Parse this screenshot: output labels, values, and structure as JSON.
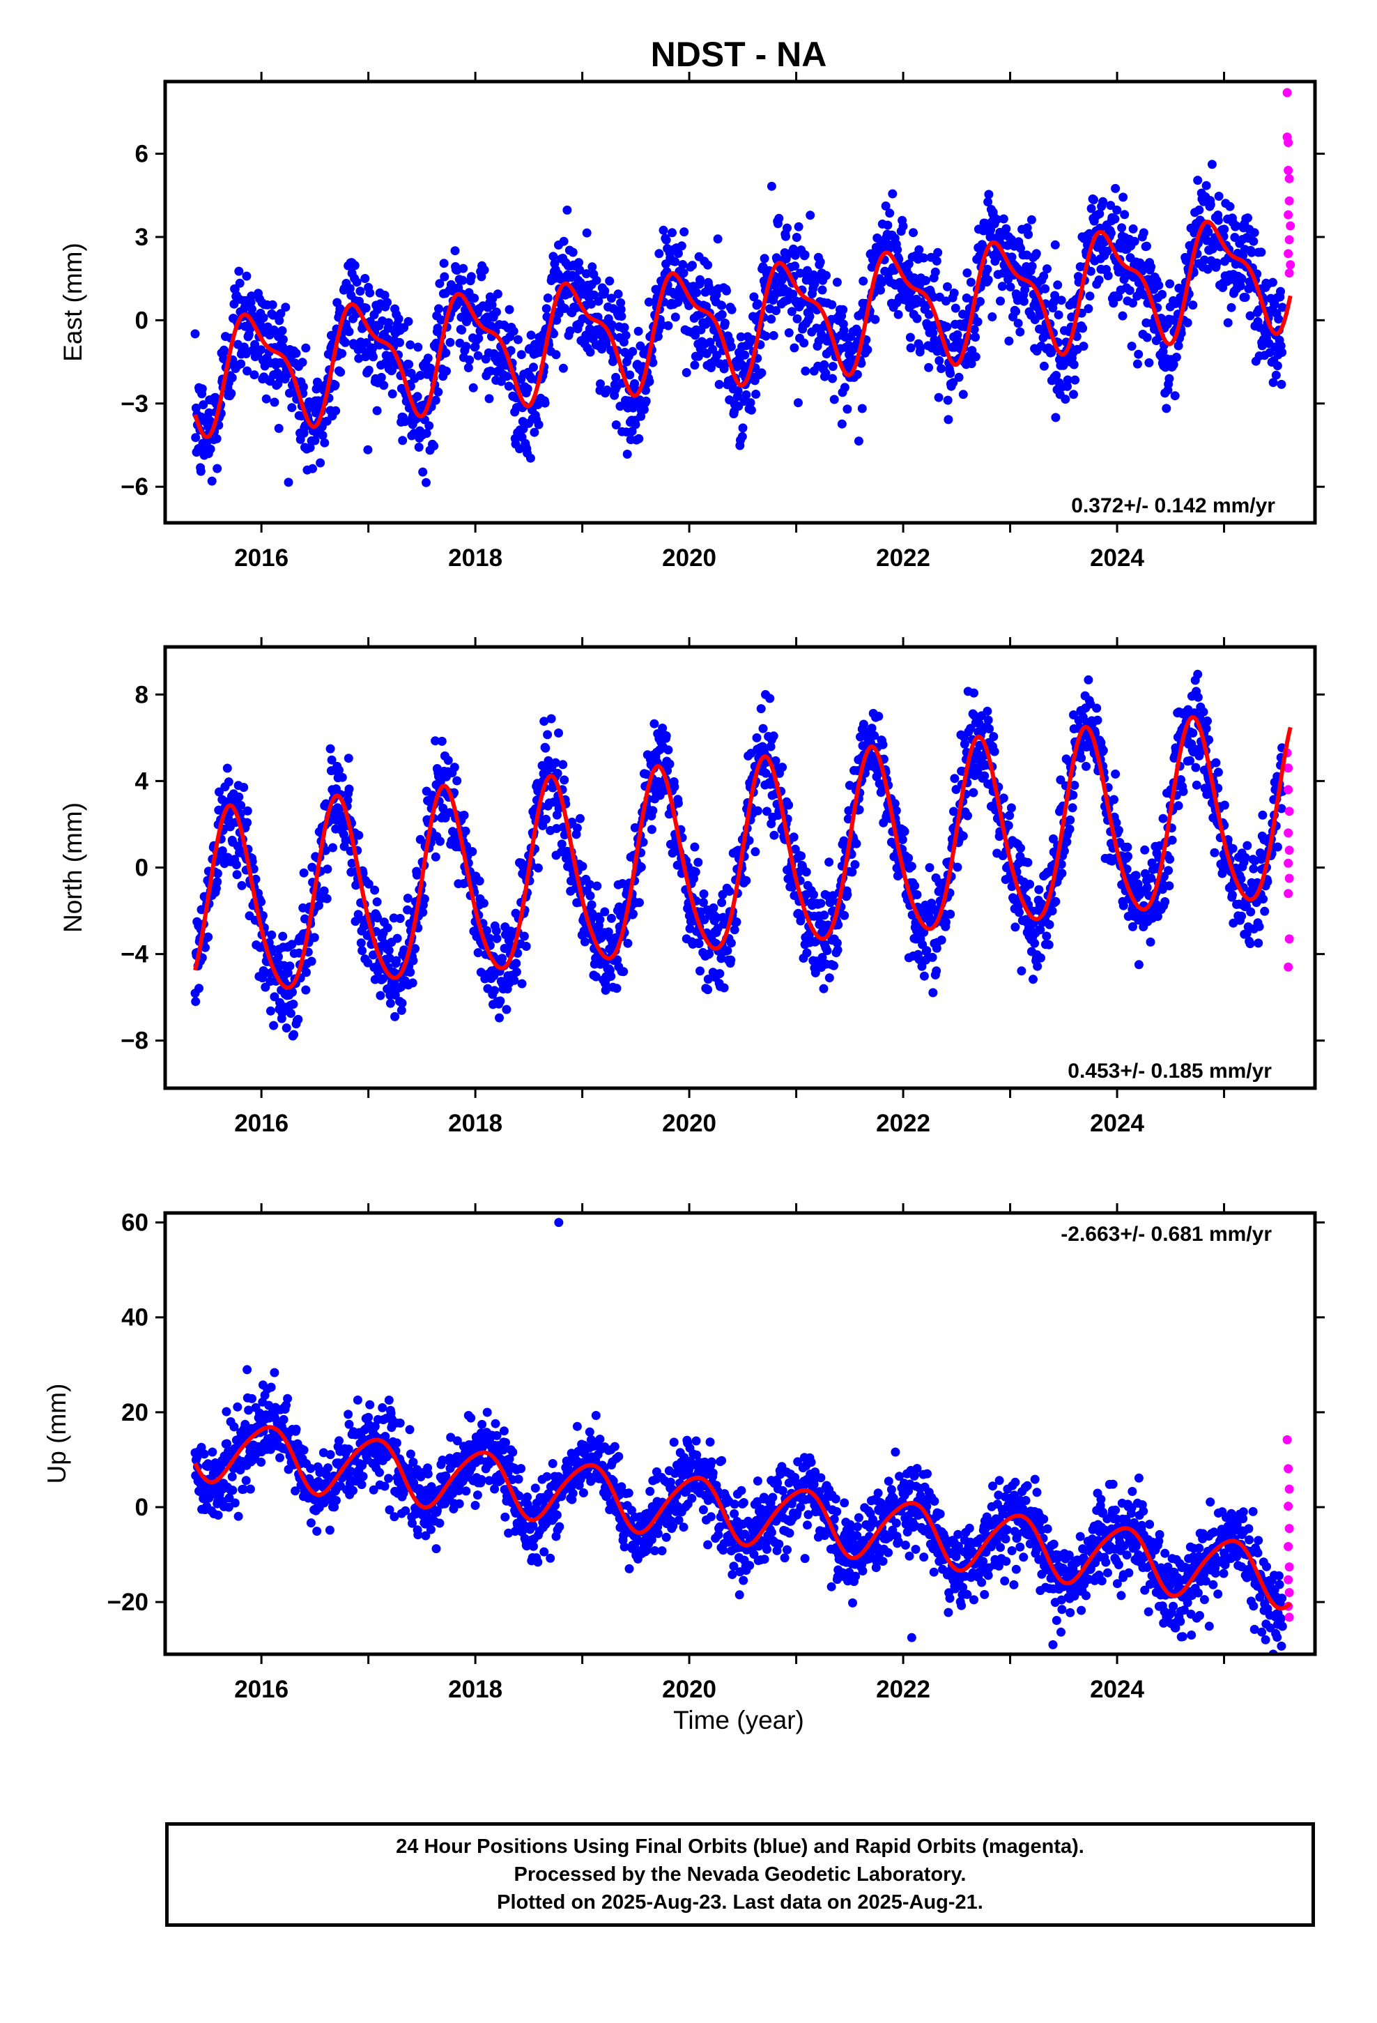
{
  "title": "NDST - NA",
  "xlabel": "Time (year)",
  "colors": {
    "final": "#0000ff",
    "rapid": "#ff00ff",
    "fit": "#ff0000"
  },
  "footer": {
    "line1": "24 Hour Positions Using Final Orbits (blue) and Rapid Orbits (magenta).",
    "line2": "Processed by the Nevada Geodetic Laboratory.",
    "line3": "Plotted on 2025-Aug-23. Last data on 2025-Aug-21."
  },
  "chart_data": [
    {
      "type": "scatter",
      "component": "east",
      "ylabel": "East (mm)",
      "rate": "0.372+/- 0.142 mm/yr",
      "xlim": [
        2015.1,
        2025.85
      ],
      "ylim": [
        -7.3,
        8.6
      ],
      "xticks": [
        2016,
        2018,
        2020,
        2022,
        2024
      ],
      "yticks": [
        -6,
        -3,
        0,
        3,
        6
      ],
      "fit": {
        "slope": 0.372,
        "ref_year": 2020.5,
        "intercept": 0.0,
        "annual_amp": 1.8,
        "annual_phase_year": 2015.69,
        "semi_amp": 0.7,
        "semi_phase_year": 2015.65
      },
      "scatter_sd": 1.05,
      "rapid_points": [
        [
          2025.59,
          8.2
        ],
        [
          2025.59,
          6.6
        ],
        [
          2025.6,
          6.4
        ],
        [
          2025.6,
          5.4
        ],
        [
          2025.61,
          5.1
        ],
        [
          2025.61,
          4.3
        ],
        [
          2025.6,
          3.8
        ],
        [
          2025.62,
          3.4
        ],
        [
          2025.61,
          2.9
        ],
        [
          2025.6,
          2.4
        ],
        [
          2025.62,
          2.0
        ],
        [
          2025.61,
          1.7
        ]
      ]
    },
    {
      "type": "scatter",
      "component": "north",
      "ylabel": "North (mm)",
      "rate": "0.453+/- 0.185 mm/yr",
      "xlim": [
        2015.1,
        2025.85
      ],
      "ylim": [
        -10.2,
        10.2
      ],
      "xticks": [
        2016,
        2018,
        2020,
        2022,
        2024
      ],
      "yticks": [
        -8,
        -4,
        0,
        4,
        8
      ],
      "fit": {
        "slope": 0.453,
        "ref_year": 2020.5,
        "intercept": 0.3,
        "annual_amp": 4.3,
        "annual_phase_year": 2015.47,
        "semi_amp": 0.5,
        "semi_phase_year": 2015.55
      },
      "scatter_sd": 1.15,
      "rapid_points": [
        [
          2025.59,
          5.3
        ],
        [
          2025.6,
          4.6
        ],
        [
          2025.6,
          3.6
        ],
        [
          2025.61,
          2.6
        ],
        [
          2025.6,
          1.6
        ],
        [
          2025.61,
          0.8
        ],
        [
          2025.6,
          0.2
        ],
        [
          2025.61,
          -0.5
        ],
        [
          2025.6,
          -1.2
        ],
        [
          2025.61,
          -3.3
        ],
        [
          2025.6,
          -4.6
        ]
      ]
    },
    {
      "type": "scatter",
      "component": "up",
      "ylabel": "Up (mm)",
      "rate": "-2.663+/- 0.681 mm/yr",
      "xlim": [
        2015.1,
        2025.85
      ],
      "ylim": [
        -31,
        62
      ],
      "xticks": [
        2016,
        2018,
        2020,
        2022,
        2024
      ],
      "yticks": [
        -20,
        0,
        20,
        40,
        60
      ],
      "fit": {
        "slope": -2.663,
        "ref_year": 2020.5,
        "intercept": -1.0,
        "annual_amp": 6.4,
        "annual_phase_year": 2015.8,
        "semi_amp": 0.8,
        "semi_phase_year": 2015.6
      },
      "scatter_sd": 4.2,
      "outliers": [
        [
          2018.78,
          60.0
        ],
        [
          2022.08,
          -27.5
        ],
        [
          2023.4,
          -29.0
        ]
      ],
      "rapid_points": [
        [
          2025.59,
          14.2
        ],
        [
          2025.6,
          8.1
        ],
        [
          2025.61,
          3.8
        ],
        [
          2025.6,
          0.2
        ],
        [
          2025.61,
          -4.5
        ],
        [
          2025.6,
          -8.3
        ],
        [
          2025.61,
          -12.6
        ],
        [
          2025.6,
          -15.3
        ],
        [
          2025.61,
          -18.0
        ],
        [
          2025.6,
          -20.9
        ],
        [
          2025.61,
          -23.2
        ]
      ]
    }
  ]
}
